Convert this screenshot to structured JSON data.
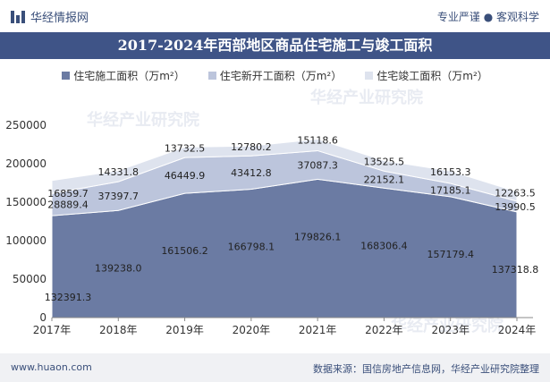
{
  "header": {
    "brand": "华经情报网",
    "tagline": "专业严谨 ● 客观科学"
  },
  "chart_data": {
    "type": "area",
    "title": "2017-2024年西部地区商品住宅施工与竣工面积",
    "categories": [
      "2017年",
      "2018年",
      "2019年",
      "2020年",
      "2021年",
      "2022年",
      "2023年",
      "2024年"
    ],
    "stacked": true,
    "ylim": [
      0,
      250000
    ],
    "yticks": [
      0,
      50000,
      100000,
      150000,
      200000,
      250000
    ],
    "series": [
      {
        "name": "住宅施工面积（万m²）",
        "color": "#6b7ba3",
        "values": [
          132391.3,
          139238.0,
          161506.2,
          166798.1,
          179826.1,
          168306.4,
          157179.4,
          137318.8
        ]
      },
      {
        "name": "住宅新开工面积（万m²）",
        "color": "#bcc5dc",
        "values": [
          28889.4,
          37397.7,
          46449.9,
          43412.8,
          37087.3,
          22152.1,
          17185.1,
          13990.5
        ]
      },
      {
        "name": "住宅竣工面积（万m²）",
        "color": "#dee3ee",
        "values": [
          16859.7,
          14331.8,
          13732.5,
          12780.2,
          15118.6,
          13525.5,
          16153.3,
          12263.5
        ]
      }
    ],
    "labels": [
      [
        "132391.3",
        "139238.0",
        "161506.2",
        "166798.1",
        "179826.1",
        "168306.4",
        "157179.4",
        "137318.8"
      ],
      [
        "28889.4",
        "37397.7",
        "46449.9",
        "43412.8",
        "37087.3",
        "22152.1",
        "17185.1",
        "13990.5"
      ],
      [
        "16859.7",
        "14331.8",
        "13732.5",
        "12780.2",
        "15118.6",
        "13525.5",
        "16153.3",
        "12263.5"
      ]
    ]
  },
  "footer": {
    "url": "www.huaon.com",
    "source": "数据来源：国信房地产信息网，华经产业研究院整理"
  },
  "watermark": "华经产业研究院"
}
